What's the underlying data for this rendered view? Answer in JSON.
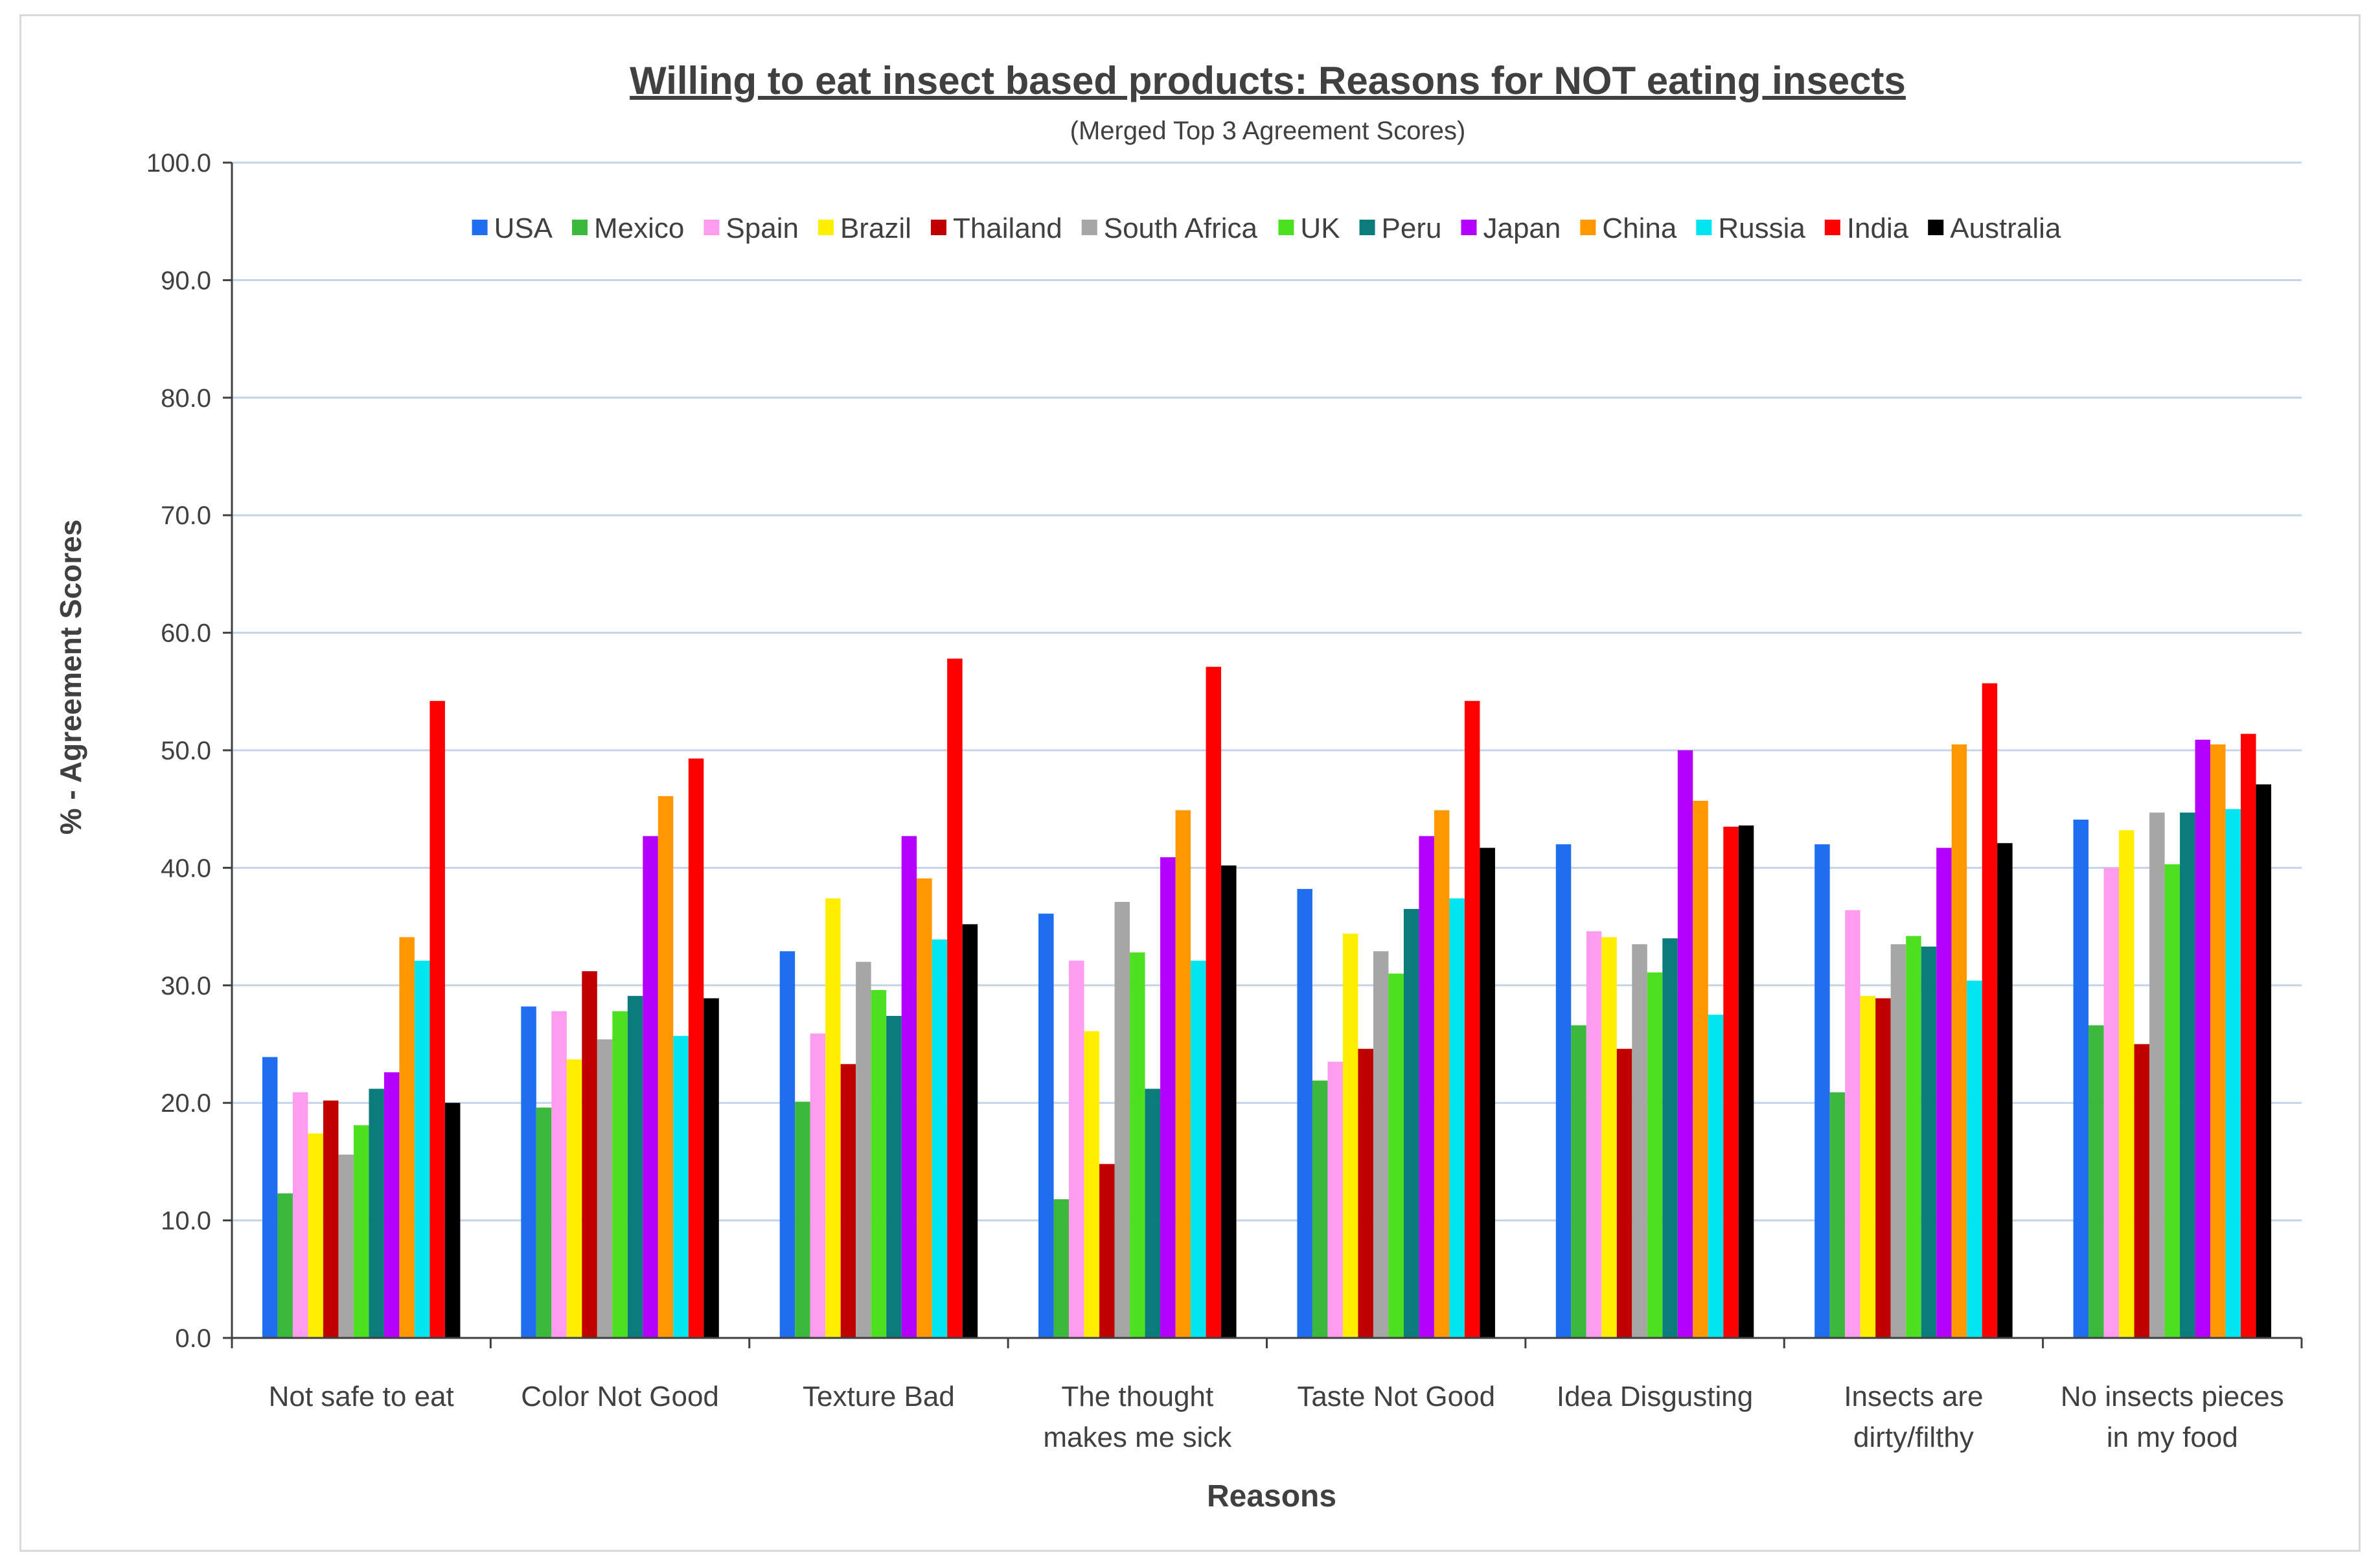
{
  "chart_data": {
    "type": "bar",
    "title": "Willing to eat insect based products: Reasons for NOT eating insects",
    "subtitle": "(Merged Top 3 Agreement Scores)",
    "xlabel": "Reasons",
    "ylabel": "% - Agreement Scores",
    "ylim": [
      0,
      100
    ],
    "ytick_step": 10,
    "ytick_labels": [
      "0.0",
      "10.0",
      "20.0",
      "30.0",
      "40.0",
      "50.0",
      "60.0",
      "70.0",
      "80.0",
      "90.0",
      "100.0"
    ],
    "grid": true,
    "legend_position": "top",
    "categories": [
      [
        "Not safe to eat"
      ],
      [
        "Color Not Good"
      ],
      [
        "Texture Bad"
      ],
      [
        "The thought",
        "makes me sick"
      ],
      [
        "Taste Not Good"
      ],
      [
        "Idea Disgusting"
      ],
      [
        "Insects are",
        "dirty/filthy"
      ],
      [
        "No insects pieces",
        "in my food"
      ]
    ],
    "series": [
      {
        "name": "USA",
        "color": "#1f6ef0",
        "values": [
          23.9,
          28.2,
          32.9,
          36.1,
          38.2,
          42.0,
          42.0,
          44.1
        ]
      },
      {
        "name": "Mexico",
        "color": "#3cb93c",
        "values": [
          12.3,
          19.6,
          20.1,
          11.8,
          21.9,
          26.6,
          20.9,
          26.6
        ]
      },
      {
        "name": "Spain",
        "color": "#ff9cf0",
        "values": [
          20.9,
          27.8,
          25.9,
          32.1,
          23.5,
          34.6,
          36.4,
          40.0
        ]
      },
      {
        "name": "Brazil",
        "color": "#ffee00",
        "values": [
          17.4,
          23.7,
          37.4,
          26.1,
          34.4,
          34.1,
          29.1,
          43.2
        ]
      },
      {
        "name": "Thailand",
        "color": "#c00000",
        "values": [
          20.2,
          31.2,
          23.3,
          14.8,
          24.6,
          24.6,
          28.9,
          25.0
        ]
      },
      {
        "name": "South Africa",
        "color": "#a6a6a6",
        "values": [
          15.6,
          25.4,
          32.0,
          37.1,
          32.9,
          33.5,
          33.5,
          44.7
        ]
      },
      {
        "name": "UK",
        "color": "#4ce020",
        "values": [
          18.1,
          27.8,
          29.6,
          32.8,
          31.0,
          31.1,
          34.2,
          40.3
        ]
      },
      {
        "name": "Peru",
        "color": "#0b7b7b",
        "values": [
          21.2,
          29.1,
          27.4,
          21.2,
          36.5,
          34.0,
          33.3,
          44.7
        ]
      },
      {
        "name": "Japan",
        "color": "#b400ff",
        "values": [
          22.6,
          42.7,
          42.7,
          40.9,
          42.7,
          50.0,
          41.7,
          50.9
        ]
      },
      {
        "name": "China",
        "color": "#ff9800",
        "values": [
          34.1,
          46.1,
          39.1,
          44.9,
          44.9,
          45.7,
          50.5,
          50.5
        ]
      },
      {
        "name": "Russia",
        "color": "#00e5f0",
        "values": [
          32.1,
          25.7,
          33.9,
          32.1,
          37.4,
          27.5,
          30.4,
          45.0
        ]
      },
      {
        "name": "India",
        "color": "#ff0000",
        "values": [
          54.2,
          49.3,
          57.8,
          57.1,
          54.2,
          43.5,
          55.7,
          51.4
        ]
      },
      {
        "name": "Australia",
        "color": "#000000",
        "values": [
          20.0,
          28.9,
          35.2,
          40.2,
          41.7,
          43.6,
          42.1,
          47.1
        ]
      }
    ]
  }
}
